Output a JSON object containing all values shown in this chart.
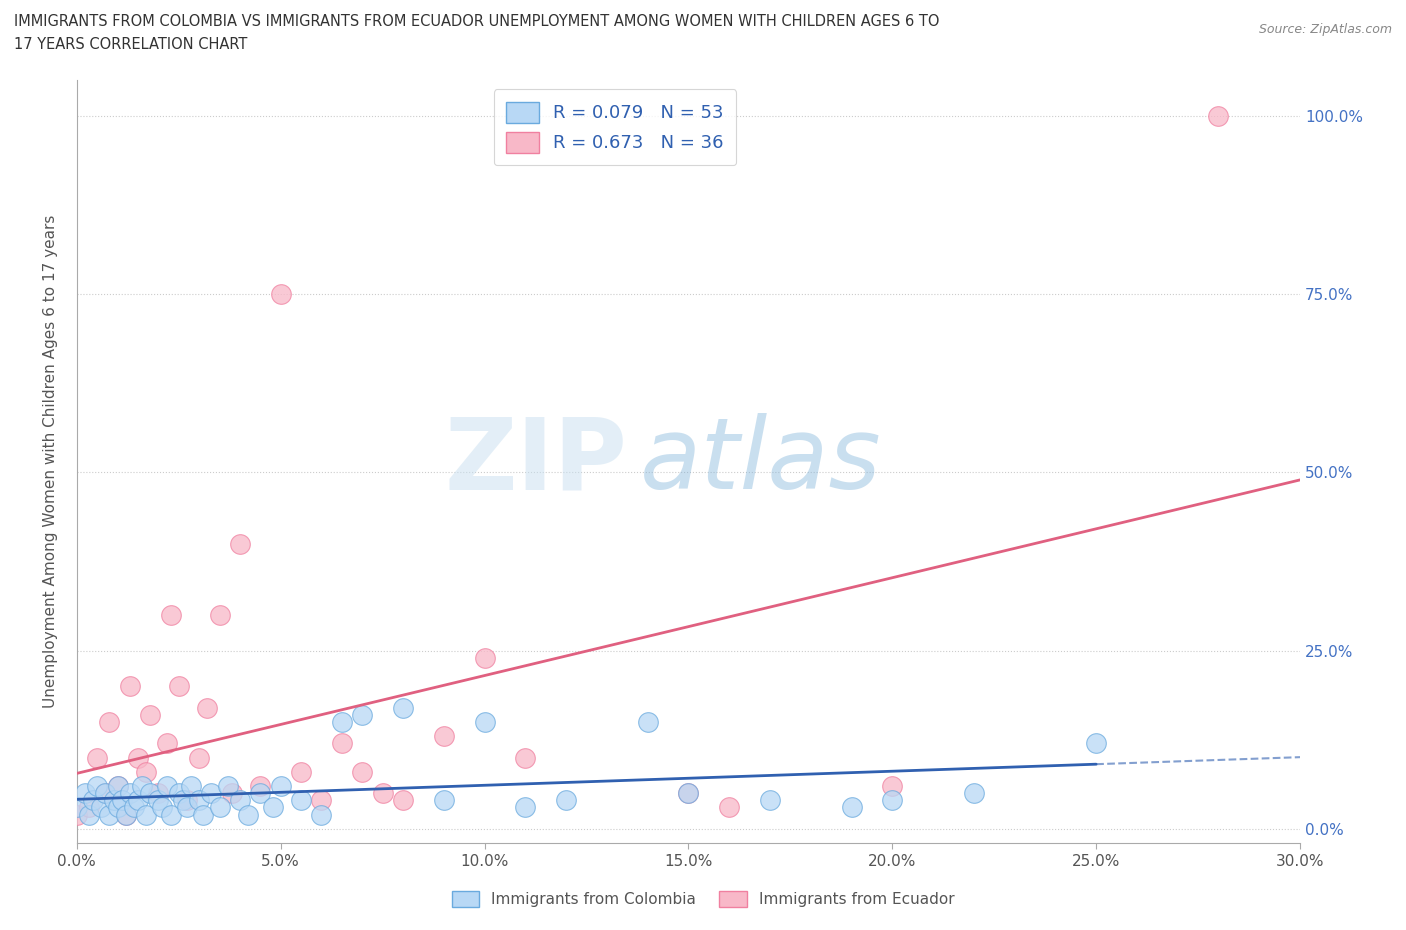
{
  "title_line1": "IMMIGRANTS FROM COLOMBIA VS IMMIGRANTS FROM ECUADOR UNEMPLOYMENT AMONG WOMEN WITH CHILDREN AGES 6 TO",
  "title_line2": "17 YEARS CORRELATION CHART",
  "source_text": "Source: ZipAtlas.com",
  "ylabel": "Unemployment Among Women with Children Ages 6 to 17 years",
  "x_tick_labels": [
    "0.0%",
    "5.0%",
    "10.0%",
    "15.0%",
    "20.0%",
    "25.0%",
    "30.0%"
  ],
  "y_tick_labels": [
    "0.0%",
    "25.0%",
    "50.0%",
    "75.0%",
    "100.0%"
  ],
  "xlim": [
    0.0,
    0.3
  ],
  "ylim": [
    -0.02,
    1.05
  ],
  "watermark_zip": "ZIP",
  "watermark_atlas": "atlas",
  "colombia_R": 0.079,
  "colombia_N": 53,
  "ecuador_R": 0.673,
  "ecuador_N": 36,
  "colombia_color": "#b8d8f5",
  "ecuador_color": "#f8b8c8",
  "colombia_edge_color": "#6aaade",
  "ecuador_edge_color": "#f080a0",
  "colombia_line_color": "#3060b0",
  "ecuador_line_color": "#e06080",
  "legend_label_colombia": "Immigrants from Colombia",
  "legend_label_ecuador": "Immigrants from Ecuador",
  "colombia_x": [
    0.0,
    0.002,
    0.003,
    0.004,
    0.005,
    0.006,
    0.007,
    0.008,
    0.009,
    0.01,
    0.01,
    0.011,
    0.012,
    0.013,
    0.014,
    0.015,
    0.016,
    0.017,
    0.018,
    0.02,
    0.021,
    0.022,
    0.023,
    0.025,
    0.026,
    0.027,
    0.028,
    0.03,
    0.031,
    0.033,
    0.035,
    0.037,
    0.04,
    0.042,
    0.045,
    0.048,
    0.05,
    0.055,
    0.06,
    0.065,
    0.07,
    0.08,
    0.09,
    0.1,
    0.11,
    0.12,
    0.14,
    0.15,
    0.17,
    0.19,
    0.2,
    0.22,
    0.25
  ],
  "colombia_y": [
    0.03,
    0.05,
    0.02,
    0.04,
    0.06,
    0.03,
    0.05,
    0.02,
    0.04,
    0.03,
    0.06,
    0.04,
    0.02,
    0.05,
    0.03,
    0.04,
    0.06,
    0.02,
    0.05,
    0.04,
    0.03,
    0.06,
    0.02,
    0.05,
    0.04,
    0.03,
    0.06,
    0.04,
    0.02,
    0.05,
    0.03,
    0.06,
    0.04,
    0.02,
    0.05,
    0.03,
    0.06,
    0.04,
    0.02,
    0.15,
    0.16,
    0.17,
    0.04,
    0.15,
    0.03,
    0.04,
    0.15,
    0.05,
    0.04,
    0.03,
    0.04,
    0.05,
    0.12
  ],
  "ecuador_x": [
    0.0,
    0.003,
    0.005,
    0.007,
    0.008,
    0.01,
    0.012,
    0.013,
    0.015,
    0.017,
    0.018,
    0.02,
    0.022,
    0.023,
    0.025,
    0.027,
    0.03,
    0.032,
    0.035,
    0.038,
    0.04,
    0.045,
    0.05,
    0.055,
    0.06,
    0.065,
    0.07,
    0.075,
    0.08,
    0.09,
    0.1,
    0.11,
    0.15,
    0.16,
    0.2,
    0.28
  ],
  "ecuador_y": [
    0.02,
    0.03,
    0.1,
    0.05,
    0.15,
    0.06,
    0.02,
    0.2,
    0.1,
    0.08,
    0.16,
    0.05,
    0.12,
    0.3,
    0.2,
    0.04,
    0.1,
    0.17,
    0.3,
    0.05,
    0.4,
    0.06,
    0.75,
    0.08,
    0.04,
    0.12,
    0.08,
    0.05,
    0.04,
    0.13,
    0.24,
    0.1,
    0.05,
    0.03,
    0.06,
    1.0
  ],
  "grid_color": "#cccccc",
  "background_color": "#ffffff"
}
